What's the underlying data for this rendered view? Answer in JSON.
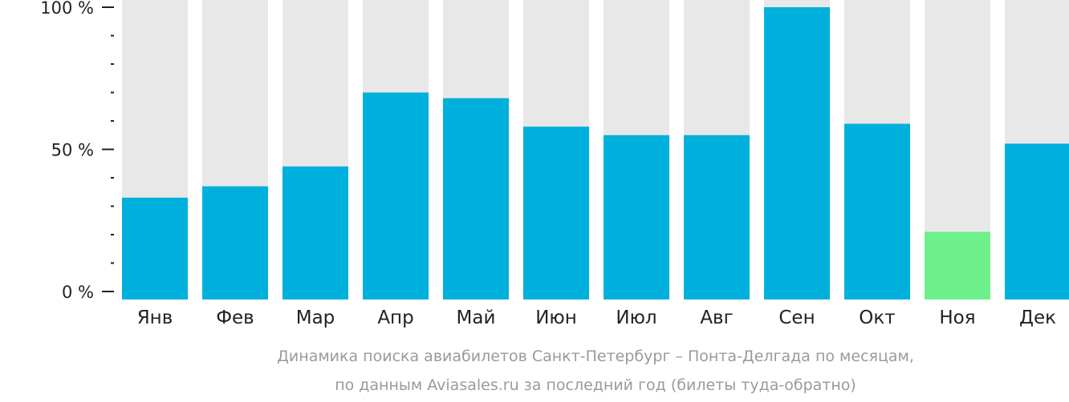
{
  "chart_data": {
    "type": "bar",
    "categories": [
      "Янв",
      "Фев",
      "Мар",
      "Апр",
      "Май",
      "Июн",
      "Июл",
      "Авг",
      "Сен",
      "Окт",
      "Ноя",
      "Дек"
    ],
    "values": [
      33,
      37,
      44,
      70,
      68,
      58,
      55,
      55,
      100,
      59,
      21,
      52
    ],
    "ylim": [
      0,
      100
    ],
    "y_tick_labels": [
      "0 %",
      "50 %",
      "100 %"
    ],
    "y_tick_values": [
      0,
      50,
      100
    ],
    "minor_tick_step": 10,
    "caption_line1": "Динамика поиска авиабилетов Санкт-Петербург – Понта-Делгада по месяцам,",
    "caption_line2": "по данным Aviasales.ru за последний год (билеты туда-обратно)",
    "colors": {
      "bar": "#00b0dc",
      "bar_highlight": "#6ef08a",
      "background_bar": "#e8e8e8",
      "axis": "#222222",
      "caption": "#9a9a9a"
    },
    "highlight_index": 10,
    "grid": false,
    "legend": "none"
  }
}
